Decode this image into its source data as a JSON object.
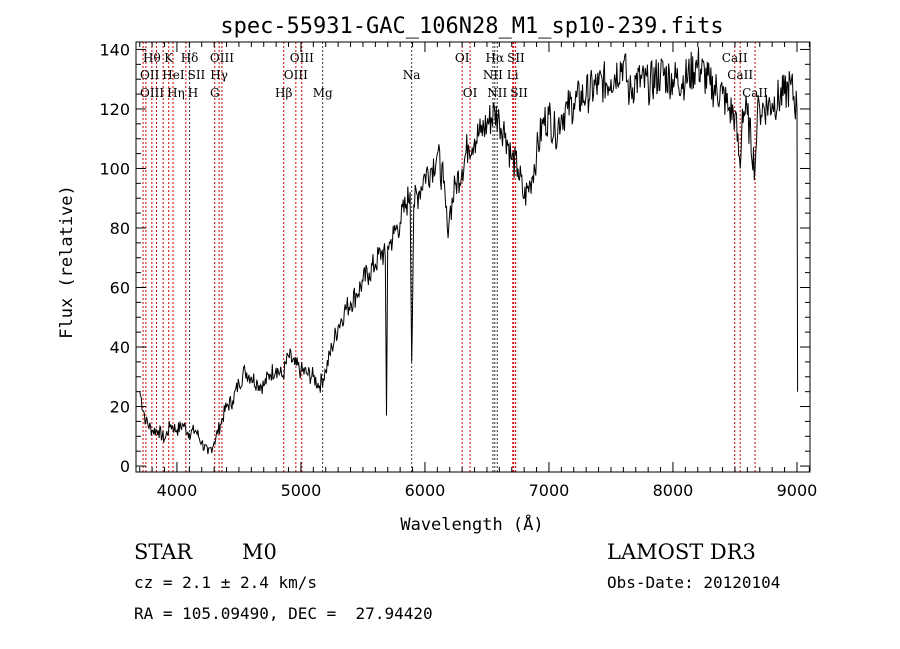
{
  "chart_data": {
    "type": "line",
    "title": "spec-55931-GAC_106N28_M1_sp10-239.fits",
    "xlabel": "Wavelength (Å)",
    "ylabel": "Flux (relative)",
    "xlim": [
      3670,
      9105
    ],
    "ylim": [
      -2,
      142.5
    ],
    "xticks": [
      4000,
      5000,
      6000,
      7000,
      8000,
      9000
    ],
    "yticks": [
      0,
      20,
      40,
      60,
      80,
      100,
      120,
      140
    ],
    "grid": false,
    "series": [
      {
        "name": "spectrum",
        "x": [
          3700,
          3750,
          3800,
          3850,
          3900,
          3950,
          4000,
          4050,
          4100,
          4150,
          4200,
          4250,
          4300,
          4350,
          4400,
          4450,
          4500,
          4550,
          4600,
          4650,
          4700,
          4750,
          4800,
          4850,
          4900,
          4950,
          5000,
          5050,
          5100,
          5150,
          5200,
          5250,
          5300,
          5350,
          5400,
          5450,
          5500,
          5550,
          5600,
          5650,
          5680,
          5690,
          5700,
          5720,
          5750,
          5800,
          5850,
          5880,
          5893,
          5910,
          5950,
          6000,
          6050,
          6100,
          6150,
          6180,
          6200,
          6250,
          6300,
          6350,
          6400,
          6450,
          6500,
          6563,
          6600,
          6650,
          6700,
          6750,
          6800,
          6850,
          6900,
          6950,
          7000,
          7050,
          7100,
          7150,
          7200,
          7300,
          7400,
          7500,
          7600,
          7650,
          7700,
          7800,
          7900,
          8000,
          8100,
          8200,
          8300,
          8400,
          8450,
          8500,
          8542,
          8560,
          8600,
          8662,
          8680,
          8700,
          8800,
          8900,
          8950,
          9000,
          9005
        ],
        "y": [
          25,
          15,
          12,
          12,
          9,
          14,
          12,
          14,
          11,
          12,
          8,
          4,
          8,
          14,
          20,
          22,
          28,
          32,
          30,
          28,
          27,
          31,
          33,
          30,
          37,
          34,
          32,
          31,
          30,
          27,
          32,
          40,
          47,
          52,
          55,
          58,
          62,
          65,
          68,
          72,
          70,
          17,
          74,
          75,
          78,
          82,
          88,
          92,
          35,
          88,
          92,
          98,
          100,
          105,
          95,
          80,
          85,
          95,
          100,
          108,
          110,
          112,
          115,
          119,
          116,
          112,
          103,
          100,
          90,
          95,
          105,
          115,
          118,
          112,
          118,
          120,
          122,
          125,
          128,
          130,
          136,
          125,
          130,
          128,
          132,
          130,
          130,
          135,
          128,
          125,
          120,
          118,
          100,
          120,
          118,
          100,
          118,
          120,
          122,
          125,
          128,
          120,
          25
        ]
      }
    ],
    "lines": [
      {
        "wave": 3727,
        "label": "OII",
        "row": 2,
        "color": "#cc0000"
      },
      {
        "wave": 3750,
        "label": "OIII",
        "row": 3,
        "color": "#cc0000"
      },
      {
        "wave": 3798,
        "label": "Hθ",
        "row": 1,
        "color": "#cc0000"
      },
      {
        "wave": 3835,
        "label": "Hη",
        "row": 3,
        "color": "#cc0000"
      },
      {
        "wave": 3889,
        "label": "HeI",
        "row": 2,
        "color": "#cc0000"
      },
      {
        "wave": 3934,
        "label": "K",
        "row": 1,
        "color": "#cc0000"
      },
      {
        "wave": 3968,
        "label": "H",
        "row": 3,
        "color": "#cc0000"
      },
      {
        "wave": 4072,
        "label": "SII",
        "row": 2,
        "color": "#cc0000"
      },
      {
        "wave": 4102,
        "label": "Hδ",
        "row": 1,
        "color": "#333333"
      },
      {
        "wave": 4305,
        "label": "G",
        "row": 3,
        "color": "#cc0000"
      },
      {
        "wave": 4340,
        "label": "Hγ",
        "row": 2,
        "color": "#cc0000"
      },
      {
        "wave": 4363,
        "label": "OIII",
        "row": 1,
        "color": "#cc0000"
      },
      {
        "wave": 4861,
        "label": "Hβ",
        "row": 3,
        "color": "#cc0000"
      },
      {
        "wave": 4959,
        "label": "OIII",
        "row": 2,
        "color": "#cc0000"
      },
      {
        "wave": 5007,
        "label": "OIII",
        "row": 1,
        "color": "#cc0000"
      },
      {
        "wave": 5175,
        "label": "Mg",
        "row": 3,
        "color": "#333333"
      },
      {
        "wave": 5893,
        "label": "Na",
        "row": 2,
        "color": "#333333"
      },
      {
        "wave": 6300,
        "label": "OI",
        "row": 1,
        "color": "#cc0000"
      },
      {
        "wave": 6364,
        "label": "OI",
        "row": 3,
        "color": "#cc0000"
      },
      {
        "wave": 6548,
        "label": "NII",
        "row": 2,
        "color": "#333333"
      },
      {
        "wave": 6563,
        "label": "Hα",
        "row": 1,
        "color": "#333333"
      },
      {
        "wave": 6583,
        "label": "NII",
        "row": 3,
        "color": "#333333"
      },
      {
        "wave": 6708,
        "label": "Li",
        "row": 2,
        "color": "#cc0000"
      },
      {
        "wave": 6716,
        "label": "SII",
        "row": 1,
        "color": "#cc0000"
      },
      {
        "wave": 6731,
        "label": "SII",
        "row": 3,
        "color": "#cc0000"
      },
      {
        "wave": 8498,
        "label": "CaII",
        "row": 1,
        "color": "#cc0000"
      },
      {
        "wave": 8542,
        "label": "CaII",
        "row": 2,
        "color": "#cc0000"
      },
      {
        "wave": 8662,
        "label": "CaII",
        "row": 3,
        "color": "#cc0000"
      }
    ]
  },
  "info": {
    "object_class": "STAR",
    "subclass": "M0",
    "cz": "cz = 2.1 ± 2.4 km/s",
    "coords": "RA = 105.09490, DEC =  27.94420",
    "survey": "LAMOST DR3",
    "obs_date": "Obs-Date: 20120104"
  }
}
